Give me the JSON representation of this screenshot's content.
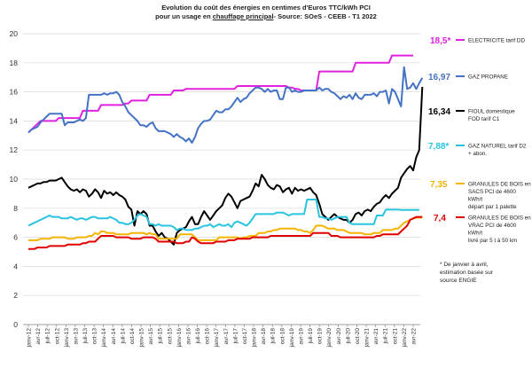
{
  "chart_data": {
    "type": "line",
    "title_line1": "Evolution du coût des énergies en centimes d'Euros TTC/kWh PCI",
    "title_line2_prefix": "pour un usage en ",
    "title_line2_underlined": "chauffage principal",
    "title_line2_suffix": "- Source: SOeS - CEEB - T1 2022",
    "ylim": [
      0,
      20
    ],
    "yticks": [
      0,
      2,
      4,
      6,
      8,
      10,
      12,
      14,
      16,
      18,
      20
    ],
    "grid": true,
    "x_start": "2012-01",
    "x_ticks": [
      "janv-12",
      "avr-12",
      "juil-12",
      "oct-12",
      "janv-13",
      "avr-13",
      "juil-13",
      "oct-13",
      "janv-14",
      "avr-14",
      "juil-14",
      "oct-14",
      "janv-15",
      "avr-15",
      "juil-15",
      "oct-15",
      "janv-16",
      "avr-16",
      "juil-16",
      "oct-16",
      "janv-17",
      "avr-17",
      "juil-17",
      "oct-17",
      "janv-18",
      "avr-18",
      "juil-18",
      "oct-18",
      "janv-19",
      "avr-19",
      "juil-19",
      "oct-19",
      "janv-20",
      "avr-20",
      "juil-20",
      "oct-20",
      "janv-21",
      "avr-21",
      "juil-21",
      "oct-21",
      "janv-22",
      "avr-22"
    ],
    "note": "* De janvier à avril, estimation basée sur source ENGIE",
    "series": [
      {
        "name": "ELECTRICITE tarif DD",
        "value_label": "18,5*",
        "label_lines": [
          "ELECTRICITE tarif DD"
        ],
        "color": "#e022e0",
        "values": [
          13.2,
          13.4,
          13.6,
          13.8,
          14.0,
          14.0,
          14.0,
          14.0,
          14.0,
          14.0,
          14.2,
          14.2,
          14.2,
          14.2,
          14.2,
          14.2,
          14.2,
          14.2,
          14.7,
          14.7,
          14.7,
          14.7,
          14.7,
          14.7,
          15.1,
          15.1,
          15.1,
          15.1,
          15.1,
          15.1,
          15.1,
          15.1,
          15.2,
          15.2,
          15.4,
          15.4,
          15.4,
          15.4,
          15.4,
          15.4,
          15.8,
          15.8,
          15.8,
          15.8,
          15.8,
          15.8,
          15.8,
          15.8,
          16.1,
          16.1,
          16.1,
          16.1,
          16.2,
          16.2,
          16.2,
          16.2,
          16.2,
          16.2,
          16.2,
          16.2,
          16.2,
          16.2,
          16.2,
          16.2,
          16.2,
          16.2,
          16.2,
          16.2,
          16.2,
          16.4,
          16.4,
          16.4,
          16.4,
          16.4,
          16.4,
          16.4,
          16.4,
          16.4,
          16.4,
          16.4,
          16.4,
          16.4,
          16.4,
          16.4,
          16.4,
          16.4,
          16.3,
          16.3,
          16.2,
          16.2,
          16.1,
          16.1,
          16.1,
          16.1,
          16.1,
          16.1,
          17.4,
          17.4,
          17.4,
          17.4,
          17.4,
          17.4,
          17.4,
          17.4,
          17.4,
          17.4,
          17.4,
          17.4,
          18.0,
          18.0,
          18.0,
          18.0,
          18.0,
          18.0,
          18.0,
          18.0,
          18.0,
          18.0,
          18.0,
          18.0,
          18.5,
          18.5,
          18.5,
          18.5,
          18.5,
          18.5,
          18.5,
          18.5
        ]
      },
      {
        "name": "GAZ PROPANE",
        "value_label": "16,97",
        "label_lines": [
          "GAZ PROPANE"
        ],
        "color": "#4472c4",
        "values": [
          13.2,
          13.4,
          13.5,
          13.6,
          13.9,
          14.1,
          14.3,
          14.5,
          14.5,
          14.5,
          14.5,
          14.5,
          13.7,
          13.9,
          13.9,
          13.9,
          14.0,
          14.1,
          14.0,
          14.2,
          15.8,
          15.8,
          15.8,
          15.8,
          15.8,
          15.9,
          15.8,
          15.9,
          15.9,
          16.0,
          15.8,
          15.3,
          15.0,
          14.6,
          14.4,
          14.2,
          14.0,
          13.7,
          13.7,
          13.6,
          13.8,
          13.9,
          13.5,
          13.3,
          13.3,
          13.3,
          13.2,
          13.1,
          12.9,
          13.1,
          12.9,
          12.8,
          12.6,
          12.8,
          12.5,
          12.9,
          13.5,
          13.8,
          14.0,
          14.0,
          14.1,
          14.4,
          14.7,
          14.6,
          14.6,
          14.8,
          14.8,
          15.0,
          15.3,
          15.6,
          15.3,
          15.5,
          15.6,
          15.9,
          16.1,
          16.3,
          16.3,
          16.2,
          16.0,
          16.2,
          16.0,
          16.1,
          16.1,
          15.5,
          15.5,
          16.3,
          16.3,
          16.0,
          16.1,
          16.0,
          16.0,
          16.1,
          16.1,
          16.1,
          16.1,
          16.1,
          16.3,
          16.1,
          16.2,
          16.2,
          16.0,
          15.9,
          15.7,
          15.5,
          15.7,
          15.6,
          15.8,
          15.5,
          15.9,
          15.6,
          15.5,
          15.8,
          15.8,
          15.8,
          15.9,
          15.7,
          16.0,
          16.0,
          16.1,
          15.2,
          16.2,
          16.0,
          15.5,
          15.0,
          17.7,
          16.2,
          16.3,
          16.6,
          16.2,
          16.6,
          16.97
        ]
      },
      {
        "name": "FIOUL domestique FOD tarif C1",
        "value_label": "16,34",
        "label_lines": [
          "FIOUL domestique",
          "FOD tarif C1"
        ],
        "color": "#000000",
        "values": [
          9.4,
          9.5,
          9.6,
          9.7,
          9.7,
          9.8,
          9.8,
          9.9,
          9.9,
          9.9,
          10.0,
          10.1,
          9.8,
          9.5,
          9.3,
          9.2,
          9.3,
          9.1,
          9.3,
          9.2,
          8.8,
          9.0,
          9.3,
          9.1,
          8.7,
          9.2,
          9.0,
          9.1,
          8.9,
          9.1,
          8.9,
          8.8,
          8.6,
          8.1,
          7.9,
          6.8,
          7.8,
          7.6,
          7.8,
          7.6,
          6.8,
          6.8,
          6.4,
          6.1,
          6.3,
          6.0,
          5.9,
          5.7,
          5.5,
          6.3,
          6.5,
          6.6,
          6.7,
          7.1,
          7.4,
          6.9,
          6.9,
          7.4,
          7.8,
          7.5,
          7.2,
          7.5,
          7.8,
          8.0,
          8.2,
          8.7,
          9.0,
          8.8,
          8.4,
          8.0,
          8.5,
          8.6,
          8.7,
          8.8,
          9.2,
          9.7,
          9.5,
          10.3,
          10.0,
          9.6,
          9.4,
          9.3,
          9.6,
          9.5,
          9.1,
          9.3,
          9.4,
          9.0,
          9.4,
          9.2,
          9.3,
          9.2,
          9.3,
          9.4,
          9.1,
          8.9,
          8.3,
          7.6,
          7.4,
          7.2,
          7.4,
          7.6,
          7.4,
          7.3,
          7.2,
          7.2,
          7.0,
          7.2,
          7.6,
          7.7,
          7.5,
          7.8,
          7.9,
          7.8,
          8.1,
          8.3,
          8.4,
          8.7,
          8.9,
          8.7,
          9.0,
          9.2,
          9.4,
          10.1,
          10.4,
          10.7,
          10.9,
          10.6,
          11.5,
          12.0,
          16.34
        ]
      },
      {
        "name": "GAZ NATUREL tarif D2 + abon.",
        "value_label": "7,88*",
        "label_lines": [
          "GAZ NATUREL tarif D2",
          "+ abon."
        ],
        "color": "#29c4e0",
        "values": [
          6.8,
          6.9,
          7.0,
          7.1,
          7.2,
          7.3,
          7.4,
          7.5,
          7.4,
          7.4,
          7.4,
          7.3,
          7.3,
          7.3,
          7.4,
          7.3,
          7.2,
          7.3,
          7.3,
          7.2,
          7.3,
          7.4,
          7.4,
          7.3,
          7.3,
          7.3,
          7.3,
          7.4,
          7.3,
          7.2,
          7.0,
          7.0,
          6.9,
          6.9,
          7.0,
          7.2,
          7.5,
          7.6,
          7.5,
          7.4,
          6.9,
          6.9,
          6.8,
          6.9,
          6.8,
          6.8,
          6.8,
          6.8,
          6.7,
          6.5,
          6.6,
          6.6,
          6.5,
          6.5,
          6.5,
          6.6,
          6.6,
          6.7,
          6.8,
          6.8,
          6.9,
          6.7,
          6.8,
          6.9,
          6.8,
          6.8,
          6.9,
          6.7,
          7.0,
          7.1,
          7.0,
          6.9,
          6.8,
          7.0,
          7.3,
          7.6,
          7.6,
          7.6,
          7.6,
          7.6,
          7.6,
          7.6,
          7.7,
          7.7,
          7.7,
          7.6,
          7.5,
          7.6,
          7.6,
          7.6,
          7.6,
          7.6,
          8.6,
          8.6,
          8.6,
          8.6,
          7.4,
          7.4,
          7.3,
          7.3,
          7.2,
          7.3,
          7.4,
          7.4,
          7.4,
          7.4,
          7.0,
          6.9,
          6.9,
          6.9,
          6.9,
          6.9,
          6.9,
          6.9,
          6.9,
          7.5,
          7.5,
          7.5,
          7.9,
          7.9,
          7.9,
          7.9,
          7.9,
          7.88,
          7.88,
          7.88,
          7.88,
          7.88,
          7.88,
          7.88
        ]
      },
      {
        "name": "GRANULES DE BOIS en SACS PCI de 4600 kWh/t départ par 1 palette",
        "value_label": "7,35",
        "label_lines": [
          "GRANULES DE BOIS en",
          "SACS PCI de 4600",
          "kWh/t",
          "départ par 1 palette"
        ],
        "color": "#f5b400",
        "values": [
          5.8,
          5.8,
          5.8,
          5.8,
          5.9,
          5.9,
          5.9,
          5.9,
          6.0,
          6.0,
          6.0,
          6.0,
          6.0,
          5.9,
          5.9,
          5.9,
          6.0,
          6.0,
          6.0,
          6.0,
          6.1,
          6.1,
          6.3,
          6.2,
          6.4,
          6.4,
          6.3,
          6.3,
          6.3,
          6.2,
          6.2,
          6.2,
          6.2,
          6.2,
          6.3,
          6.3,
          6.3,
          6.3,
          6.3,
          6.2,
          6.3,
          6.2,
          6.2,
          5.9,
          5.9,
          5.9,
          5.9,
          5.9,
          5.9,
          5.9,
          6.2,
          6.2,
          6.2,
          6.2,
          6.2,
          6.0,
          5.8,
          5.8,
          5.8,
          5.8,
          5.8,
          5.8,
          5.8,
          6.0,
          6.0,
          6.0,
          6.0,
          6.0,
          6.0,
          6.0,
          5.9,
          6.0,
          6.0,
          6.1,
          6.1,
          6.1,
          6.3,
          6.3,
          6.3,
          6.4,
          6.4,
          6.5,
          6.5,
          6.6,
          6.6,
          6.6,
          6.6,
          6.6,
          6.6,
          6.5,
          6.5,
          6.4,
          6.4,
          6.3,
          6.5,
          6.8,
          6.8,
          6.8,
          6.7,
          6.6,
          6.6,
          6.6,
          6.5,
          6.5,
          6.5,
          6.4,
          6.3,
          6.3,
          6.3,
          6.3,
          6.3,
          6.2,
          6.2,
          6.2,
          6.3,
          6.3,
          6.3,
          6.5,
          6.5,
          6.5,
          6.5,
          6.6,
          6.6,
          6.8,
          7.0,
          7.1,
          7.2,
          7.3,
          7.35,
          7.35,
          7.35
        ]
      },
      {
        "name": "GRANULES DE BOIS en VRAC PCI de 4600 kWh/t livré par 5 t à 50 km",
        "value_label": "7,4",
        "label_lines": [
          "GRANULES DE BOIS en",
          "VRAC PCI de 4600",
          "kWh/t",
          "livré par 5 t à 50 km"
        ],
        "color": "#e00000",
        "values": [
          5.2,
          5.2,
          5.2,
          5.3,
          5.3,
          5.3,
          5.3,
          5.4,
          5.4,
          5.4,
          5.4,
          5.4,
          5.4,
          5.5,
          5.5,
          5.5,
          5.5,
          5.5,
          5.6,
          5.6,
          5.7,
          5.7,
          5.7,
          5.9,
          6.1,
          6.1,
          6.1,
          6.1,
          6.1,
          6.0,
          6.0,
          6.0,
          6.0,
          6.0,
          5.9,
          5.9,
          5.9,
          5.9,
          6.0,
          6.0,
          6.0,
          6.0,
          5.9,
          5.7,
          5.7,
          5.7,
          5.7,
          5.7,
          5.7,
          5.6,
          5.6,
          5.6,
          5.7,
          5.7,
          6.0,
          5.9,
          5.7,
          5.6,
          5.6,
          5.6,
          5.6,
          5.6,
          5.7,
          5.7,
          5.7,
          5.7,
          5.8,
          5.8,
          5.8,
          5.9,
          5.9,
          5.9,
          5.9,
          5.9,
          6.0,
          6.0,
          6.0,
          6.0,
          6.0,
          6.0,
          6.1,
          6.1,
          6.1,
          6.1,
          6.1,
          6.1,
          6.1,
          6.1,
          6.1,
          6.1,
          6.1,
          6.1,
          6.1,
          6.1,
          6.3,
          6.3,
          6.3,
          6.3,
          6.3,
          6.3,
          6.1,
          6.1,
          6.1,
          6.0,
          6.0,
          6.0,
          6.0,
          6.0,
          6.0,
          6.0,
          6.0,
          6.0,
          6.0,
          6.0,
          6.0,
          6.1,
          6.1,
          6.2,
          6.2,
          6.2,
          6.2,
          6.2,
          6.2,
          6.4,
          6.6,
          6.8,
          7.2,
          7.3,
          7.4,
          7.4,
          7.4
        ]
      }
    ]
  }
}
